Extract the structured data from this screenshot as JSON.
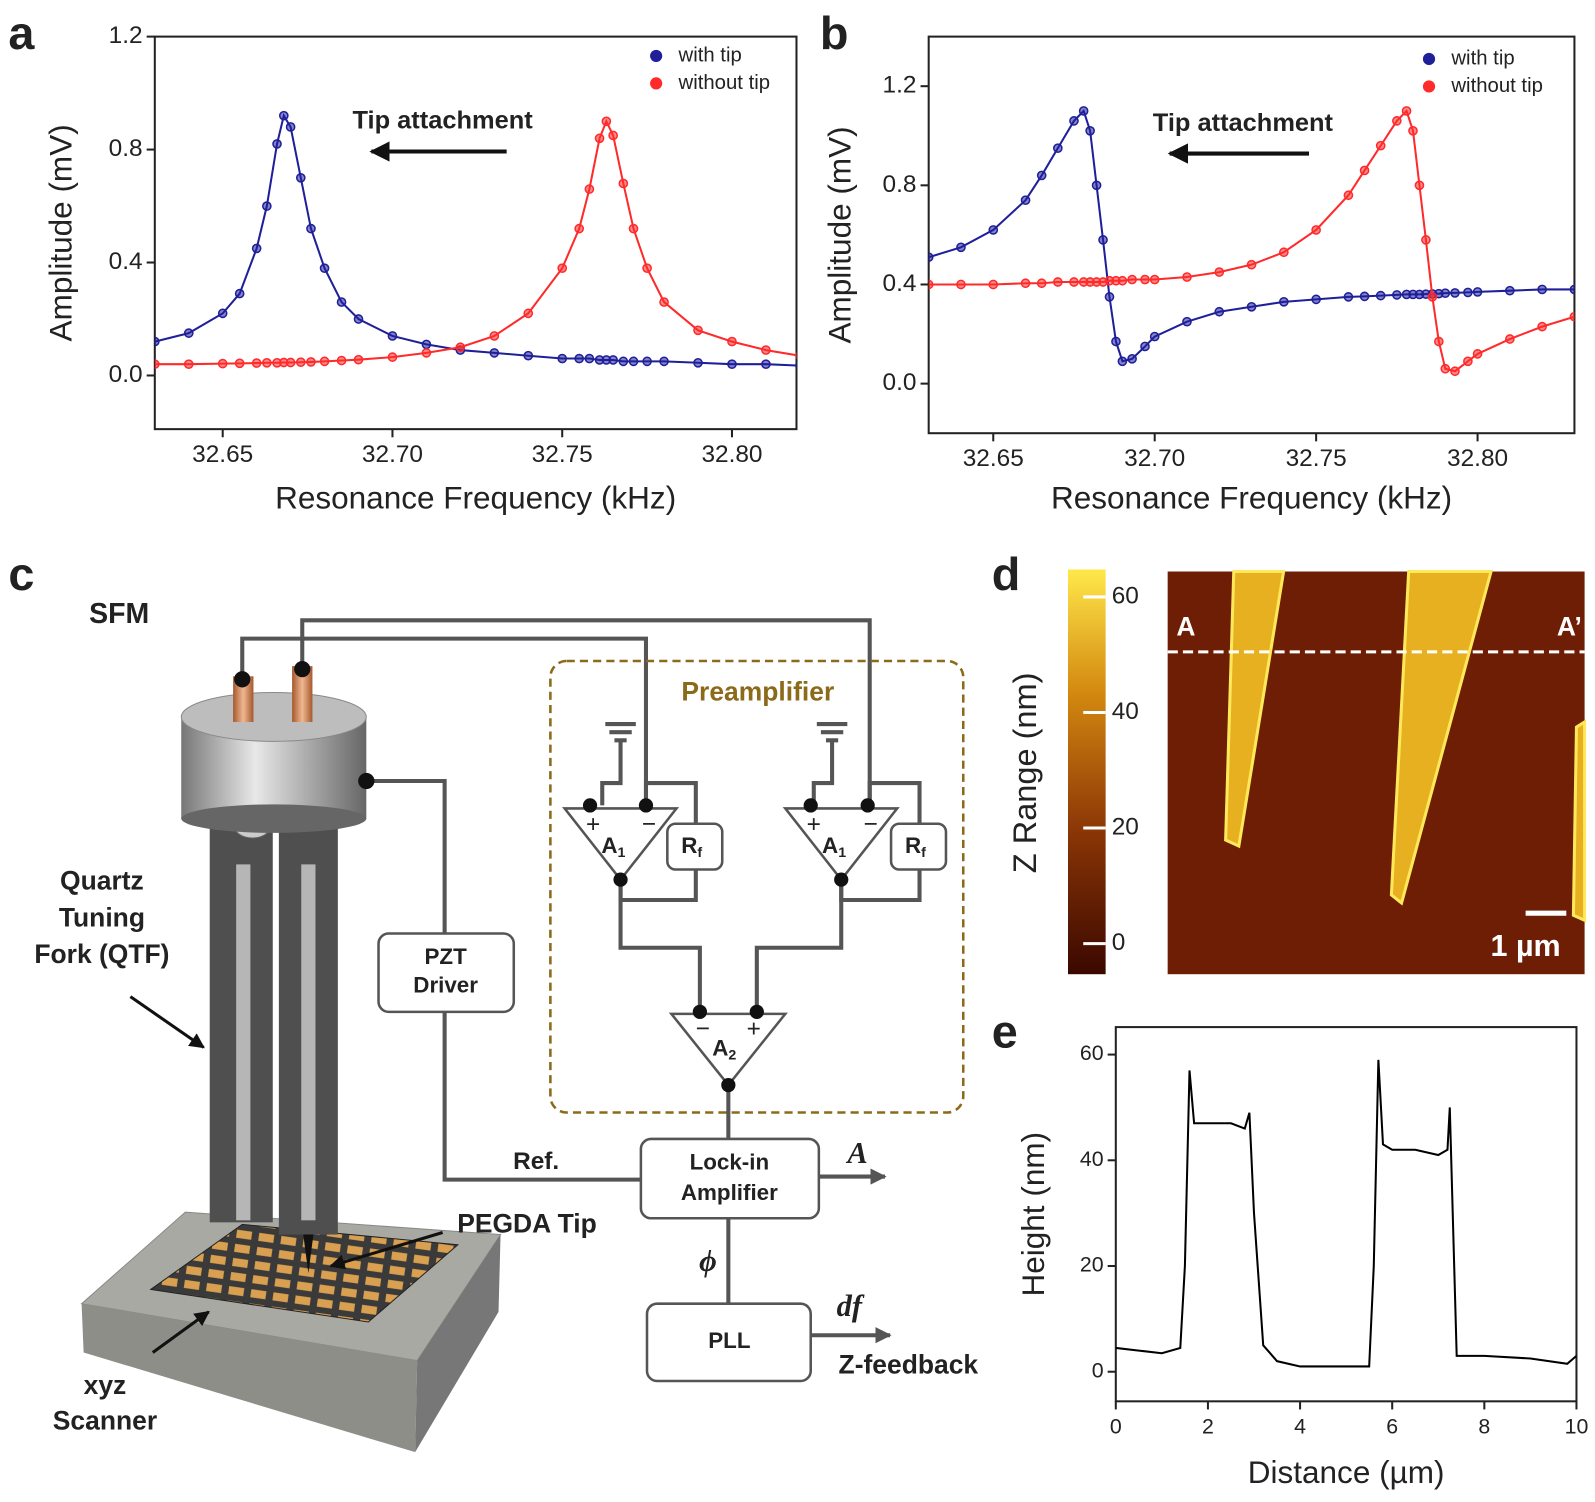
{
  "panel_labels": [
    "a",
    "b",
    "c",
    "d",
    "e"
  ],
  "chart_data": [
    {
      "type": "line",
      "markers": true,
      "legend": "upper right",
      "xlabel": "Resonance Frequency (kHz)",
      "ylabel": "Amplitude (mV)",
      "annotation": "Tip attachment",
      "x": [
        32.63,
        32.64,
        32.65,
        32.655,
        32.66,
        32.663,
        32.666,
        32.668,
        32.67,
        32.673,
        32.676,
        32.68,
        32.685,
        32.69,
        32.7,
        32.71,
        32.72,
        32.73,
        32.74,
        32.75,
        32.755,
        32.758,
        32.761,
        32.763,
        32.765,
        32.768,
        32.771,
        32.775,
        32.78,
        32.79,
        32.8,
        32.81,
        32.82
      ],
      "series": [
        {
          "name": "with tip",
          "color": "#1f1f9a",
          "values": [
            0.12,
            0.15,
            0.22,
            0.29,
            0.45,
            0.6,
            0.82,
            0.92,
            0.88,
            0.7,
            0.52,
            0.38,
            0.26,
            0.2,
            0.14,
            0.11,
            0.09,
            0.08,
            0.07,
            0.06,
            0.06,
            0.06,
            0.055,
            0.055,
            0.055,
            0.05,
            0.05,
            0.05,
            0.05,
            0.045,
            0.04,
            0.04,
            0.035
          ]
        },
        {
          "name": "without tip",
          "color": "#ff2a2a",
          "values": [
            0.04,
            0.04,
            0.042,
            0.043,
            0.044,
            0.045,
            0.045,
            0.046,
            0.046,
            0.047,
            0.048,
            0.05,
            0.053,
            0.056,
            0.065,
            0.08,
            0.1,
            0.14,
            0.22,
            0.38,
            0.52,
            0.66,
            0.84,
            0.9,
            0.85,
            0.68,
            0.52,
            0.38,
            0.26,
            0.16,
            0.12,
            0.09,
            0.07
          ]
        }
      ],
      "xlim": [
        32.63,
        32.819
      ],
      "ylim": [
        -0.19,
        1.2
      ],
      "xticks": [
        32.65,
        {
          "value": 32.7,
          "label": "32.70"
        },
        32.75,
        {
          "value": 32.8,
          "label": "32.80"
        }
      ],
      "yticks": [
        {
          "value": 0,
          "label": "0.0"
        },
        0.4,
        0.8,
        1.2
      ]
    },
    {
      "type": "line",
      "markers": true,
      "legend": "upper right",
      "xlabel": "Resonance Frequency (kHz)",
      "ylabel": "Amplitude (mV)",
      "annotation": "Tip attachment",
      "x": [
        32.63,
        32.64,
        32.65,
        32.66,
        32.665,
        32.67,
        32.675,
        32.678,
        32.68,
        32.682,
        32.684,
        32.686,
        32.688,
        32.69,
        32.693,
        32.697,
        32.7,
        32.71,
        32.72,
        32.73,
        32.74,
        32.75,
        32.76,
        32.765,
        32.77,
        32.775,
        32.778,
        32.78,
        32.782,
        32.784,
        32.786,
        32.788,
        32.79,
        32.793,
        32.797,
        32.8,
        32.81,
        32.82,
        32.83
      ],
      "series": [
        {
          "name": "with tip",
          "color": "#1f1f9a",
          "values": [
            0.51,
            0.55,
            0.62,
            0.74,
            0.84,
            0.95,
            1.06,
            1.1,
            1.02,
            0.8,
            0.58,
            0.35,
            0.17,
            0.09,
            0.1,
            0.15,
            0.19,
            0.25,
            0.29,
            0.31,
            0.33,
            0.34,
            0.35,
            0.352,
            0.355,
            0.358,
            0.36,
            0.36,
            0.36,
            0.361,
            0.362,
            0.363,
            0.365,
            0.366,
            0.368,
            0.37,
            0.375,
            0.38,
            0.38
          ]
        },
        {
          "name": "without tip",
          "color": "#ff2a2a",
          "values": [
            0.4,
            0.4,
            0.4,
            0.405,
            0.405,
            0.41,
            0.41,
            0.41,
            0.41,
            0.41,
            0.41,
            0.415,
            0.415,
            0.415,
            0.42,
            0.42,
            0.42,
            0.43,
            0.45,
            0.48,
            0.53,
            0.62,
            0.76,
            0.86,
            0.96,
            1.06,
            1.1,
            1.02,
            0.8,
            0.58,
            0.35,
            0.17,
            0.06,
            0.05,
            0.09,
            0.12,
            0.18,
            0.23,
            0.27
          ]
        }
      ],
      "xlim": [
        32.63,
        32.83
      ],
      "ylim": [
        -0.2,
        1.4
      ],
      "xticks": [
        32.65,
        {
          "value": 32.7,
          "label": "32.70"
        },
        32.75,
        {
          "value": 32.8,
          "label": "32.80"
        }
      ],
      "yticks": [
        {
          "value": 0,
          "label": "0.0"
        },
        0.4,
        0.8,
        1.2
      ]
    },
    {
      "type": "line",
      "markers": false,
      "xlabel": "Distance (µm)",
      "ylabel": "Height (nm)",
      "x": [
        0,
        0.5,
        1,
        1.4,
        1.5,
        1.6,
        1.7,
        2,
        2.5,
        2.8,
        2.9,
        3,
        3.2,
        3.5,
        4,
        5,
        5.5,
        5.6,
        5.7,
        5.8,
        6,
        6.5,
        7,
        7.2,
        7.25,
        7.4,
        8,
        9,
        9.8,
        10
      ],
      "series": [
        {
          "color": "#000000",
          "values": [
            4.5,
            4,
            3.5,
            4.5,
            20,
            57,
            47,
            47,
            47,
            46,
            49,
            30,
            5,
            2,
            1,
            1,
            1,
            20,
            59,
            43,
            42,
            42,
            41,
            42,
            50,
            3,
            3,
            2.5,
            1.5,
            3
          ]
        }
      ],
      "xlim": [
        0,
        10
      ],
      "ylim": [
        -5.6,
        65.2
      ],
      "xticks": [
        0,
        2,
        4,
        6,
        8,
        10
      ],
      "yticks": [
        0,
        20,
        40,
        60
      ]
    }
  ],
  "afm_image": {
    "colorbar": {
      "label": "Z Range (nm)",
      "lim": [
        -5.3,
        64.75
      ],
      "ticks": [
        0,
        20,
        40,
        60
      ]
    },
    "markers": [
      "A",
      "A’"
    ],
    "scale_bar": "1 µm"
  },
  "schematic": {
    "title": "SFM",
    "qtf_label": [
      "Quartz",
      "Tuning",
      "Fork (QTF)"
    ],
    "tip_label": "PEGDA Tip",
    "scanner_label": [
      "xyz",
      "Scanner"
    ],
    "preamp_label": "Preamplifier",
    "pzt_driver": [
      "PZT",
      "Driver"
    ],
    "ref_label": "Ref.",
    "lockin": [
      "Lock-in",
      "Amplifier"
    ],
    "amplitude_out": "A",
    "phase_label": "ϕ",
    "pll": "PLL",
    "df_out": "df",
    "feedback_label": "Z-feedback",
    "opamps": [
      {
        "base": "A",
        "sub": "1"
      },
      {
        "base": "A",
        "sub": "1"
      },
      {
        "base": "A",
        "sub": "2"
      }
    ],
    "resistors": [
      {
        "base": "R",
        "sub": "f"
      },
      {
        "base": "R",
        "sub": "f"
      }
    ],
    "plus": "+",
    "minus": "−"
  }
}
